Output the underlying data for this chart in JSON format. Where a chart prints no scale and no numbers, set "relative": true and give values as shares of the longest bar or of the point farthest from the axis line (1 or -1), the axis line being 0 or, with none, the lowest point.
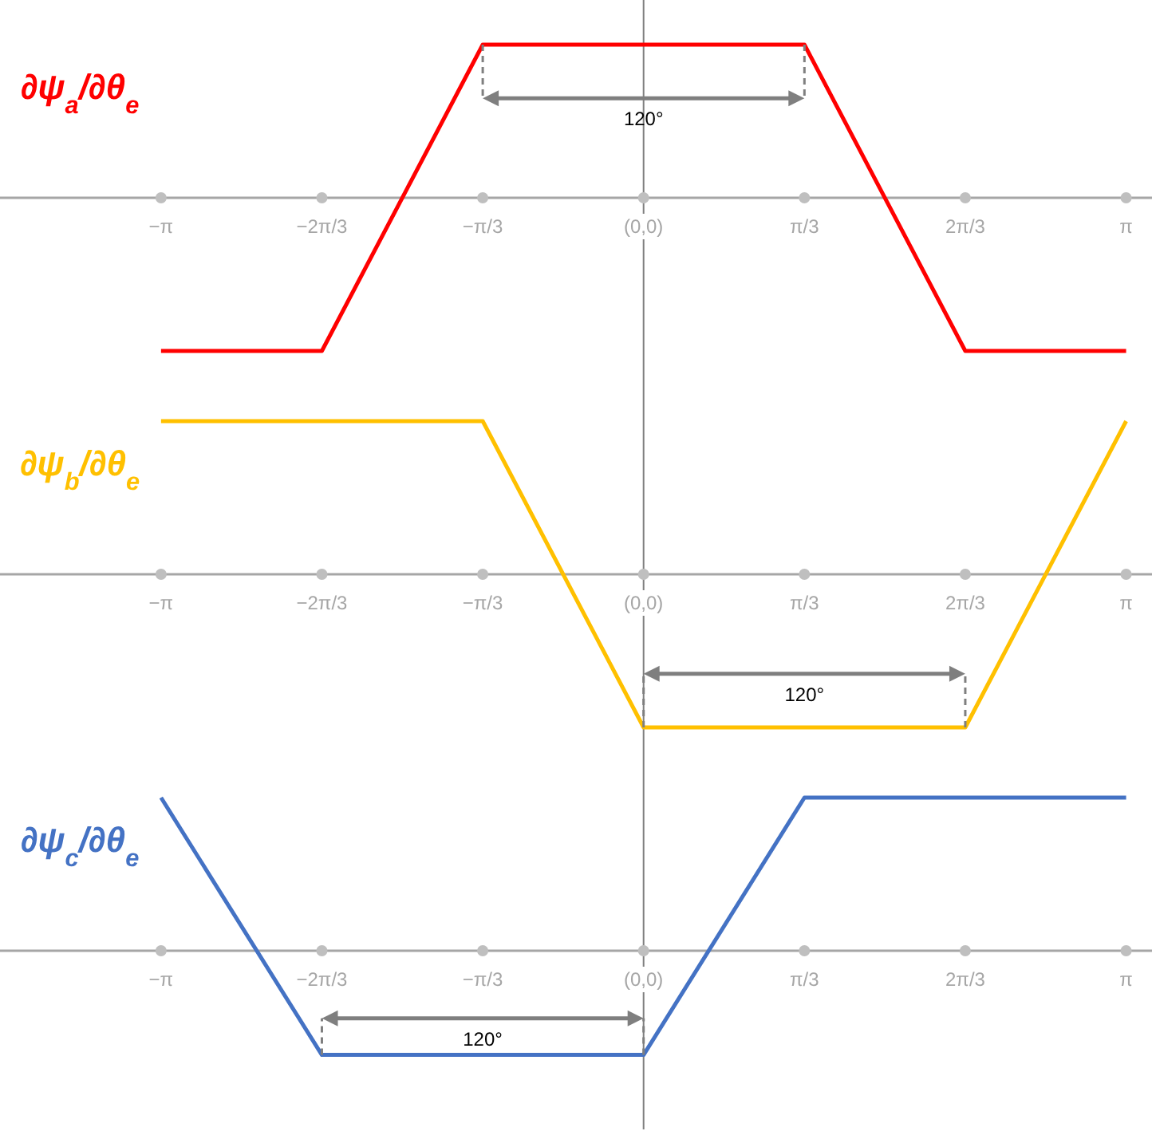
{
  "chart_data": [
    {
      "type": "line",
      "relative": true,
      "ylabel": "∂ψ$_{a}$/∂θ$_{e}$",
      "xlim": [
        -4.19,
        3.31
      ],
      "xticks": [
        {
          "value": -3.1416,
          "label": "−π"
        },
        {
          "value": -2.0944,
          "label": "−2π/3"
        },
        {
          "value": -1.0472,
          "label": "−π/3"
        },
        {
          "value": 0,
          "label": "(0,0)"
        },
        {
          "value": 1.0472,
          "label": "π/3"
        },
        {
          "value": 2.0944,
          "label": "2π/3"
        },
        {
          "value": 3.1416,
          "label": "π"
        }
      ],
      "x": [
        -3.1416,
        -2.0944,
        -1.0472,
        1.0472,
        2.0944,
        3.1416
      ],
      "series": [
        {
          "color": "#ff0000",
          "values": [
            -1,
            -1,
            1,
            1,
            -1,
            -1
          ]
        }
      ],
      "annotations": [
        "120°"
      ]
    },
    {
      "type": "line",
      "relative": true,
      "ylabel": "∂ψ$_{b}$/∂θ$_{e}$",
      "xlim": [
        -4.19,
        3.31
      ],
      "xticks": [
        {
          "value": -3.1416,
          "label": "−π"
        },
        {
          "value": -2.0944,
          "label": "−2π/3"
        },
        {
          "value": -1.0472,
          "label": "−π/3"
        },
        {
          "value": 0,
          "label": "(0,0)"
        },
        {
          "value": 1.0472,
          "label": "π/3"
        },
        {
          "value": 2.0944,
          "label": "2π/3"
        },
        {
          "value": 3.1416,
          "label": "π"
        }
      ],
      "x": [
        -3.1416,
        -1.0472,
        0,
        2.0944,
        3.1416
      ],
      "series": [
        {
          "color": "#ffc000",
          "values": [
            1,
            1,
            -1,
            -1,
            1
          ]
        }
      ],
      "annotations": [
        "120°"
      ]
    },
    {
      "type": "line",
      "relative": true,
      "ylabel": "∂ψ$_{c}$/∂θ$_{e}$",
      "xlim": [
        -4.19,
        3.31
      ],
      "xticks": [
        {
          "value": -3.1416,
          "label": "−π"
        },
        {
          "value": -2.0944,
          "label": "−2π/3"
        },
        {
          "value": -1.0472,
          "label": "−π/3"
        },
        {
          "value": 0,
          "label": "(0,0)"
        },
        {
          "value": 1.0472,
          "label": "π/3"
        },
        {
          "value": 2.0944,
          "label": "2π/3"
        },
        {
          "value": 3.1416,
          "label": "π"
        }
      ],
      "x": [
        -3.1416,
        -2.0944,
        0,
        1.0472,
        3.1416
      ],
      "series": [
        {
          "color": "#4472c4",
          "values": [
            1,
            -0.68,
            -0.68,
            1,
            1
          ]
        }
      ],
      "annotations": [
        "120°"
      ]
    }
  ]
}
